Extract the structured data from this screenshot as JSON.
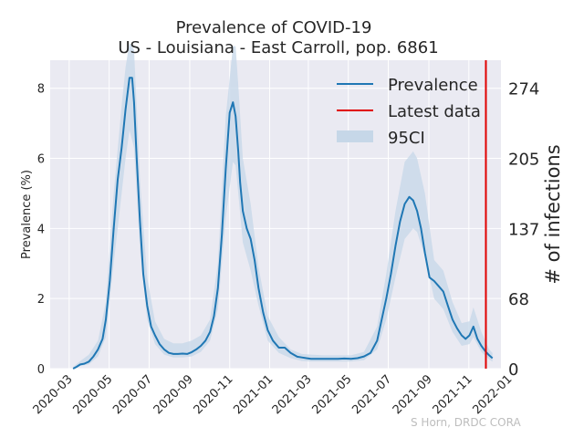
{
  "chart_data": {
    "type": "line",
    "title": "Prevalence of COVID-19",
    "subtitle": "US - Louisiana - East Carroll, pop. 6861",
    "ylabel": "Prevalence (%)",
    "ylabel_right": "# of infections",
    "ylim": [
      0,
      8.8
    ],
    "xlim": [
      "2020-02-01",
      "2021-12-20"
    ],
    "grid": true,
    "legend_position": "top-right",
    "y_ticks": [
      "0",
      "2",
      "4",
      "6",
      "8"
    ],
    "y_right_ticks": [
      "0",
      "68",
      "137",
      "205",
      "274"
    ],
    "x_tick_labels": [
      "2020-03",
      "2020-05",
      "2020-07",
      "2020-09",
      "2020-11",
      "2021-01",
      "2021-03",
      "2021-05",
      "2021-07",
      "2021-09",
      "2021-11",
      "2022-01"
    ],
    "legend": {
      "prevalence": "Prevalence",
      "latest": "Latest data",
      "ci": "95CI"
    },
    "latest_date": "2021-11-27",
    "credit": "S Horn, DRDC CORA",
    "colors": {
      "line": "#1f77b4",
      "latest": "#e00000",
      "ci": "#c6d7e8",
      "plot_bg": "#eaeaf2",
      "grid": "#ffffff"
    },
    "series": [
      {
        "name": "Prevalence",
        "x": [
          "2020-03-07",
          "2020-03-12",
          "2020-03-18",
          "2020-03-24",
          "2020-03-31",
          "2020-04-07",
          "2020-04-14",
          "2020-04-21",
          "2020-04-26",
          "2020-05-02",
          "2020-05-08",
          "2020-05-14",
          "2020-05-20",
          "2020-05-26",
          "2020-06-01",
          "2020-06-05",
          "2020-06-08",
          "2020-06-12",
          "2020-06-17",
          "2020-06-22",
          "2020-06-28",
          "2020-07-04",
          "2020-07-10",
          "2020-07-17",
          "2020-07-24",
          "2020-07-31",
          "2020-08-07",
          "2020-08-14",
          "2020-08-21",
          "2020-08-28",
          "2020-09-04",
          "2020-09-11",
          "2020-09-18",
          "2020-09-25",
          "2020-10-02",
          "2020-10-08",
          "2020-10-14",
          "2020-10-20",
          "2020-10-26",
          "2020-11-01",
          "2020-11-06",
          "2020-11-10",
          "2020-11-14",
          "2020-11-17",
          "2020-11-21",
          "2020-11-27",
          "2020-12-03",
          "2020-12-09",
          "2020-12-15",
          "2020-12-22",
          "2020-12-29",
          "2021-01-06",
          "2021-01-15",
          "2021-01-24",
          "2021-02-02",
          "2021-02-12",
          "2021-02-19",
          "2021-02-26",
          "2021-03-05",
          "2021-03-15",
          "2021-03-25",
          "2021-04-05",
          "2021-04-15",
          "2021-04-25",
          "2021-05-05",
          "2021-05-15",
          "2021-05-25",
          "2021-06-04",
          "2021-06-14",
          "2021-06-21",
          "2021-06-28",
          "2021-07-05",
          "2021-07-12",
          "2021-07-19",
          "2021-07-26",
          "2021-08-02",
          "2021-08-08",
          "2021-08-14",
          "2021-08-20",
          "2021-08-26",
          "2021-09-02",
          "2021-09-09",
          "2021-09-16",
          "2021-09-23",
          "2021-09-30",
          "2021-10-07",
          "2021-10-14",
          "2021-10-21",
          "2021-10-27",
          "2021-11-02",
          "2021-11-08",
          "2021-11-14",
          "2021-11-20",
          "2021-11-26",
          "2021-12-02",
          "2021-12-07"
        ],
        "values": [
          0.0,
          0.05,
          0.12,
          0.14,
          0.2,
          0.35,
          0.55,
          0.85,
          1.4,
          2.5,
          4.0,
          5.4,
          6.3,
          7.4,
          8.3,
          8.3,
          7.6,
          6.0,
          4.2,
          2.7,
          1.8,
          1.2,
          0.95,
          0.7,
          0.55,
          0.45,
          0.42,
          0.42,
          0.43,
          0.42,
          0.47,
          0.55,
          0.65,
          0.8,
          1.05,
          1.5,
          2.3,
          3.8,
          5.7,
          7.3,
          7.6,
          7.2,
          6.2,
          5.3,
          4.5,
          4.0,
          3.7,
          3.1,
          2.3,
          1.6,
          1.1,
          0.8,
          0.6,
          0.6,
          0.45,
          0.34,
          0.32,
          0.3,
          0.28,
          0.28,
          0.28,
          0.28,
          0.28,
          0.29,
          0.28,
          0.3,
          0.35,
          0.45,
          0.8,
          1.4,
          2.0,
          2.7,
          3.5,
          4.2,
          4.7,
          4.9,
          4.8,
          4.5,
          4.0,
          3.3,
          2.6,
          2.5,
          2.35,
          2.2,
          1.8,
          1.4,
          1.15,
          0.95,
          0.85,
          0.95,
          1.2,
          0.85,
          0.65,
          0.5,
          0.38,
          0.3
        ]
      },
      {
        "name": "95CI",
        "x": [
          "2020-03-07",
          "2020-03-18",
          "2020-03-31",
          "2020-04-14",
          "2020-04-26",
          "2020-05-08",
          "2020-05-20",
          "2020-05-26",
          "2020-06-01",
          "2020-06-08",
          "2020-06-17",
          "2020-06-28",
          "2020-07-10",
          "2020-07-24",
          "2020-08-07",
          "2020-08-21",
          "2020-09-04",
          "2020-09-18",
          "2020-10-02",
          "2020-10-14",
          "2020-10-26",
          "2020-11-06",
          "2020-11-10",
          "2020-11-14",
          "2020-11-21",
          "2020-12-03",
          "2020-12-15",
          "2020-12-29",
          "2021-01-15",
          "2021-02-02",
          "2021-02-19",
          "2021-03-05",
          "2021-03-25",
          "2021-04-15",
          "2021-05-05",
          "2021-05-25",
          "2021-06-14",
          "2021-06-28",
          "2021-07-12",
          "2021-07-26",
          "2021-08-08",
          "2021-08-14",
          "2021-08-26",
          "2021-09-09",
          "2021-09-23",
          "2021-10-07",
          "2021-10-21",
          "2021-11-02",
          "2021-11-08",
          "2021-11-20",
          "2021-12-02",
          "2021-12-07"
        ],
        "lower": [
          0.0,
          0.08,
          0.12,
          0.35,
          0.9,
          3.0,
          5.0,
          6.0,
          6.8,
          6.3,
          3.4,
          1.4,
          0.7,
          0.4,
          0.32,
          0.32,
          0.35,
          0.48,
          0.8,
          1.7,
          4.3,
          5.9,
          5.8,
          5.0,
          3.6,
          2.8,
          1.8,
          0.8,
          0.45,
          0.3,
          0.22,
          0.2,
          0.2,
          0.2,
          0.2,
          0.24,
          0.55,
          1.4,
          2.6,
          3.7,
          4.0,
          3.9,
          3.2,
          2.0,
          1.7,
          1.05,
          0.65,
          0.7,
          0.9,
          0.48,
          0.26,
          0.2
        ],
        "upper": [
          0.05,
          0.22,
          0.4,
          0.8,
          1.9,
          5.0,
          7.5,
          8.6,
          9.3,
          9.1,
          5.4,
          2.6,
          1.35,
          0.85,
          0.72,
          0.72,
          0.8,
          0.95,
          1.4,
          3.0,
          7.2,
          9.2,
          9.2,
          8.1,
          6.0,
          4.7,
          2.9,
          1.5,
          0.9,
          0.55,
          0.42,
          0.4,
          0.38,
          0.38,
          0.38,
          0.48,
          1.2,
          2.7,
          4.5,
          5.9,
          6.2,
          6.0,
          5.0,
          3.1,
          2.8,
          1.9,
          1.3,
          1.35,
          1.75,
          1.05,
          0.55,
          0.45
        ]
      }
    ]
  }
}
